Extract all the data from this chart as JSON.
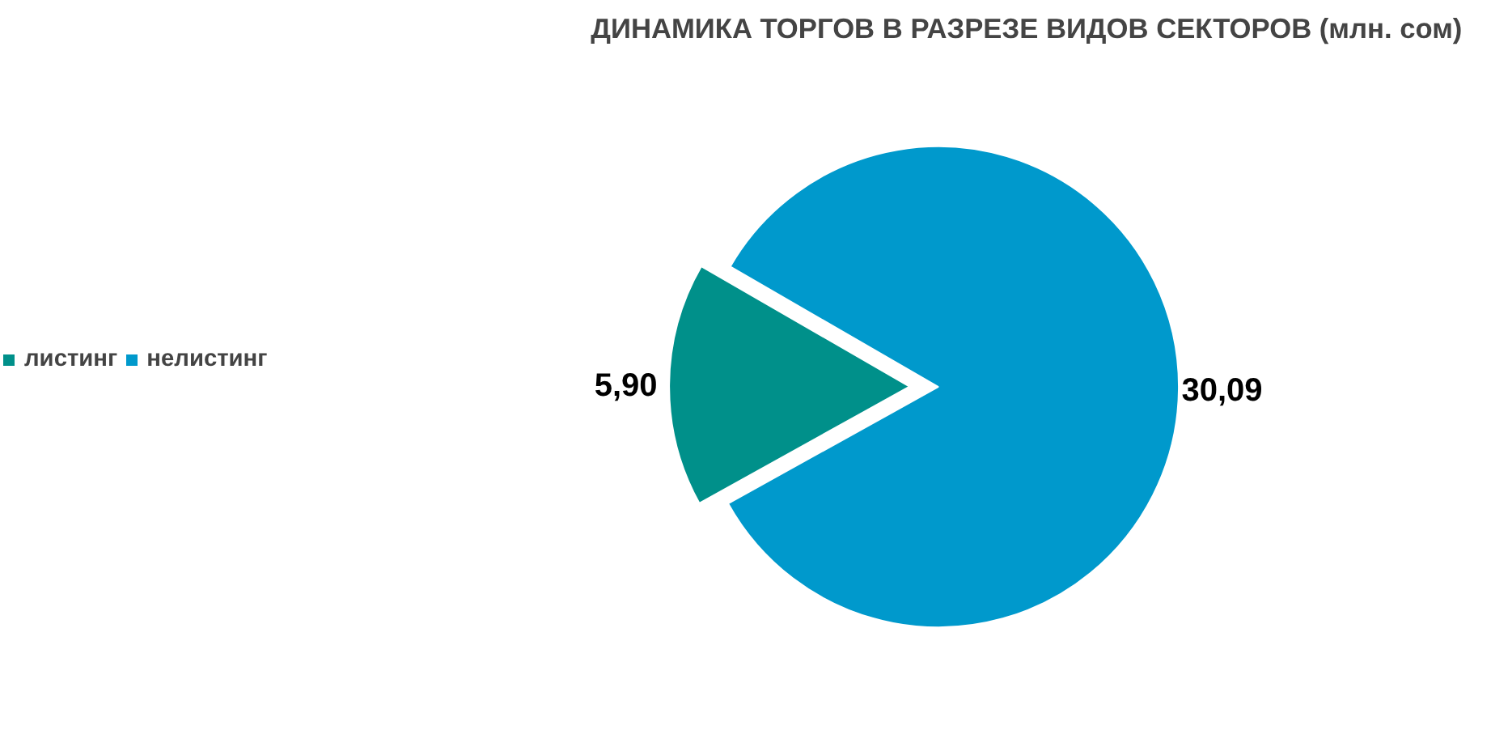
{
  "chart_data": {
    "type": "pie",
    "title": "ДИНАМИКА ТОРГОВ В РАЗРЕЗЕ ВИДОВ СЕКТОРОВ  (млн. сом)",
    "categories": [
      "листинг",
      "нелистинг"
    ],
    "values": [
      5.9,
      30.09
    ],
    "colors": [
      "#00908a",
      "#0099cc"
    ],
    "value_labels": [
      "5,90",
      "30,09"
    ],
    "legend": "left"
  }
}
